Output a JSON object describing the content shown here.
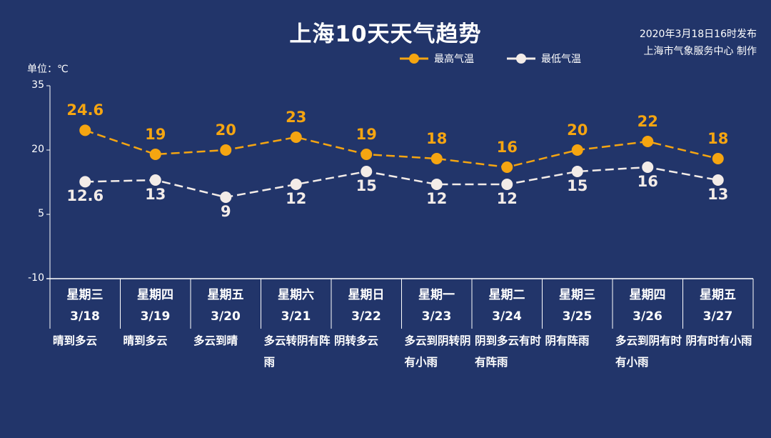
{
  "title": "上海10天天气趋势",
  "publish": {
    "line1": "2020年3月18日16时发布",
    "line2": "上海市气象服务中心 制作"
  },
  "chart_data": {
    "type": "line",
    "title": "上海10天天气趋势",
    "unit_label": "单位：℃",
    "ylim": [
      -10,
      35
    ],
    "yticks": [
      "35",
      "20",
      "5",
      "-10"
    ],
    "categories": [
      {
        "dow": "星期三",
        "date": "3/18",
        "weather": "晴到多云"
      },
      {
        "dow": "星期四",
        "date": "3/19",
        "weather": "晴到多云"
      },
      {
        "dow": "星期五",
        "date": "3/20",
        "weather": "多云到晴"
      },
      {
        "dow": "星期六",
        "date": "3/21",
        "weather": "多云转阴有阵雨"
      },
      {
        "dow": "星期日",
        "date": "3/22",
        "weather": "阴转多云"
      },
      {
        "dow": "星期一",
        "date": "3/23",
        "weather": "多云到阴转阴有小雨"
      },
      {
        "dow": "星期二",
        "date": "3/24",
        "weather": "阴到多云有时有阵雨"
      },
      {
        "dow": "星期三",
        "date": "3/25",
        "weather": "阴有阵雨"
      },
      {
        "dow": "星期四",
        "date": "3/26",
        "weather": "多云到阴有时有小雨"
      },
      {
        "dow": "星期五",
        "date": "3/27",
        "weather": "阴有时有小雨"
      }
    ],
    "series": [
      {
        "name": "最高气温",
        "color": "#f5a511",
        "values": [
          24.6,
          19,
          20,
          23,
          19,
          18,
          16,
          20,
          22,
          18
        ],
        "labels": [
          "24.6",
          "19",
          "20",
          "23",
          "19",
          "18",
          "16",
          "20",
          "22",
          "18"
        ]
      },
      {
        "name": "最低气温",
        "color": "#f3ece8",
        "values": [
          12.6,
          13,
          9,
          12,
          15,
          12,
          12,
          15,
          16,
          13
        ],
        "labels": [
          "12.6",
          "13",
          "9",
          "12",
          "15",
          "12",
          "12",
          "15",
          "16",
          "13"
        ]
      }
    ],
    "legend": "top-right",
    "grid": false
  }
}
